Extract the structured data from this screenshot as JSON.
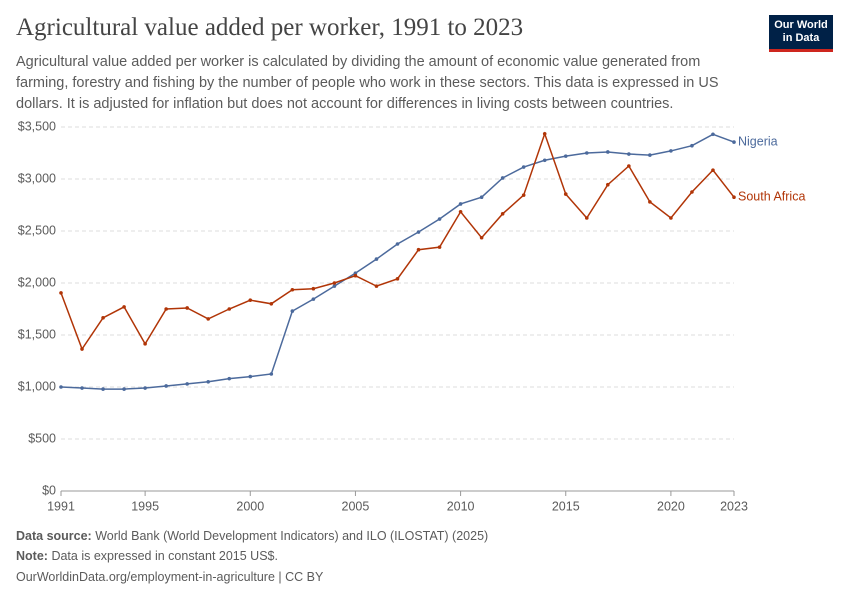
{
  "header": {
    "title": "Agricultural value added per worker, 1991 to 2023",
    "subtitle": "Agricultural value added per worker is calculated by dividing the amount of economic value generated from farming, forestry and fishing by the number of people who work in these sectors. This data is expressed in US dollars. It is adjusted for inflation but does not account for differences in living costs between countries.",
    "logo": [
      "Our World",
      "in Data"
    ]
  },
  "chart_data": {
    "type": "line",
    "x": [
      1991,
      1992,
      1993,
      1994,
      1995,
      1996,
      1997,
      1998,
      1999,
      2000,
      2001,
      2002,
      2003,
      2004,
      2005,
      2006,
      2007,
      2008,
      2009,
      2010,
      2011,
      2012,
      2013,
      2014,
      2015,
      2016,
      2017,
      2018,
      2019,
      2020,
      2021,
      2022,
      2023
    ],
    "series": [
      {
        "name": "Nigeria",
        "color": "#4c6a9c",
        "values": [
          1000,
          990,
          980,
          980,
          990,
          1010,
          1030,
          1050,
          1080,
          1100,
          1125,
          1730,
          1845,
          1970,
          2095,
          2230,
          2375,
          2490,
          2615,
          2760,
          2825,
          3010,
          3115,
          3180,
          3220,
          3250,
          3260,
          3240,
          3230,
          3270,
          3320,
          3430,
          3355
        ]
      },
      {
        "name": "South Africa",
        "color": "#b13507",
        "values": [
          1905,
          1365,
          1665,
          1770,
          1415,
          1750,
          1760,
          1655,
          1750,
          1835,
          1800,
          1935,
          1945,
          2000,
          2070,
          1970,
          2040,
          2320,
          2345,
          2685,
          2435,
          2665,
          2845,
          3435,
          2855,
          2625,
          2945,
          3125,
          2780,
          2625,
          2875,
          3085,
          2825
        ]
      }
    ],
    "xlim": [
      1991,
      2023
    ],
    "xticks": [
      1991,
      1995,
      2000,
      2005,
      2010,
      2015,
      2020,
      2023
    ],
    "ylim": [
      0,
      3500
    ],
    "yticks": [
      {
        "value": 0,
        "label": "$0"
      },
      {
        "value": 500,
        "label": "$500"
      },
      {
        "value": 1000,
        "label": "$1,000"
      },
      {
        "value": 1500,
        "label": "$1,500"
      },
      {
        "value": 2000,
        "label": "$2,000"
      },
      {
        "value": 2500,
        "label": "$2,500"
      },
      {
        "value": 3000,
        "label": "$3,000"
      },
      {
        "value": 3500,
        "label": "$3,500"
      }
    ],
    "grid": true
  },
  "footer": {
    "source_label": "Data source:",
    "source_text": "World Bank (World Development Indicators) and ILO (ILOSTAT) (2025)",
    "note_label": "Note:",
    "note_text": "Data is expressed in constant 2015 US$.",
    "url": "OurWorldinData.org/employment-in-agriculture | CC BY"
  }
}
